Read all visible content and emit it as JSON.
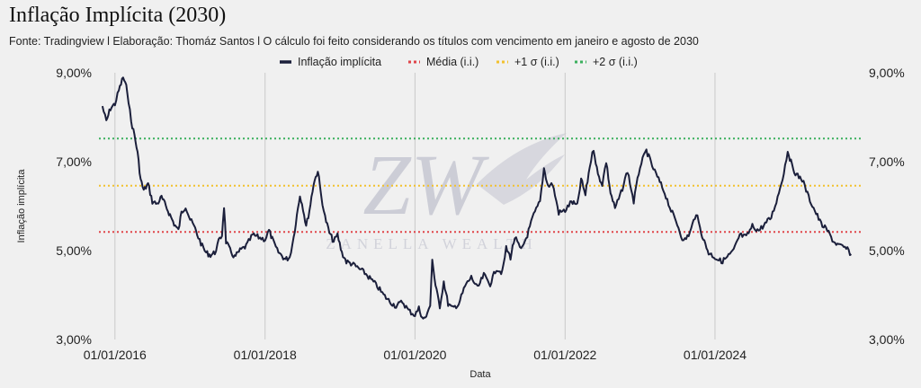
{
  "title": "Inflação Implícita (2030)",
  "subtitle": "Fonte: Tradingview l Elaboração: Thomáz Santos l O cálculo foi feito considerando os títulos com vencimento em janeiro e agosto de 2030",
  "watermark": {
    "mark": "ZW",
    "text": "ZANELLA WEALTH"
  },
  "chart_data": {
    "type": "line",
    "title": "",
    "xlabel": "Data",
    "ylabel": "Inflação implícita",
    "ylim": [
      3,
      9
    ],
    "yticks": [
      "3,00%",
      "5,00%",
      "7,00%",
      "9,00%"
    ],
    "xticks": [
      "01/01/2016",
      "01/01/2018",
      "01/01/2020",
      "01/01/2022",
      "01/01/2024"
    ],
    "grid": "vertical",
    "legend_position": "top",
    "legend": [
      {
        "label": "Inflação implícita",
        "color": "#1b1f3b",
        "style": "solid"
      },
      {
        "label": "Média (i.i.)",
        "color": "#e0454a",
        "style": "dotted"
      },
      {
        "label": "+1 σ (i.i.)",
        "color": "#f2c12e",
        "style": "dotted"
      },
      {
        "label": "+2 σ (i.i.)",
        "color": "#3bb05e",
        "style": "dotted"
      }
    ],
    "reference_lines": [
      {
        "name": "Média (i.i.)",
        "value": 5.42,
        "color": "#e0454a"
      },
      {
        "name": "+1 σ (i.i.)",
        "value": 6.46,
        "color": "#f2c12e"
      },
      {
        "name": "+2 σ (i.i.)",
        "value": 7.52,
        "color": "#3bb05e"
      }
    ],
    "series": [
      {
        "name": "Inflação implícita",
        "color": "#1b1f3b",
        "points": [
          [
            "2015-11-01",
            8.25
          ],
          [
            "2015-11-20",
            7.9
          ],
          [
            "2015-12-10",
            8.2
          ],
          [
            "2016-01-01",
            8.3
          ],
          [
            "2016-01-20",
            8.6
          ],
          [
            "2016-02-10",
            8.9
          ],
          [
            "2016-03-01",
            8.6
          ],
          [
            "2016-03-20",
            7.9
          ],
          [
            "2016-04-05",
            7.6
          ],
          [
            "2016-04-20",
            7.2
          ],
          [
            "2016-05-05",
            6.6
          ],
          [
            "2016-05-20",
            6.35
          ],
          [
            "2016-06-10",
            6.5
          ],
          [
            "2016-07-01",
            6.1
          ],
          [
            "2016-07-25",
            6.05
          ],
          [
            "2016-08-15",
            6.2
          ],
          [
            "2016-09-05",
            6.0
          ],
          [
            "2016-09-25",
            5.8
          ],
          [
            "2016-10-15",
            5.6
          ],
          [
            "2016-11-05",
            5.45
          ],
          [
            "2016-11-20",
            5.85
          ],
          [
            "2016-12-10",
            6.0
          ],
          [
            "2017-01-01",
            5.7
          ],
          [
            "2017-01-20",
            5.55
          ],
          [
            "2017-02-10",
            5.3
          ],
          [
            "2017-03-01",
            5.1
          ],
          [
            "2017-03-20",
            4.95
          ],
          [
            "2017-04-10",
            4.9
          ],
          [
            "2017-05-01",
            4.95
          ],
          [
            "2017-05-20",
            5.2
          ],
          [
            "2017-06-05",
            5.35
          ],
          [
            "2017-06-15",
            6.0
          ],
          [
            "2017-06-25",
            5.2
          ],
          [
            "2017-07-15",
            5.0
          ],
          [
            "2017-08-05",
            4.85
          ],
          [
            "2017-09-01",
            5.0
          ],
          [
            "2017-10-01",
            5.1
          ],
          [
            "2017-11-01",
            5.35
          ],
          [
            "2017-12-01",
            5.3
          ],
          [
            "2018-01-01",
            5.25
          ],
          [
            "2018-01-20",
            5.45
          ],
          [
            "2018-02-10",
            5.2
          ],
          [
            "2018-03-01",
            5.0
          ],
          [
            "2018-03-20",
            4.9
          ],
          [
            "2018-04-10",
            4.8
          ],
          [
            "2018-05-01",
            4.85
          ],
          [
            "2018-05-20",
            5.3
          ],
          [
            "2018-06-05",
            5.8
          ],
          [
            "2018-06-20",
            6.25
          ],
          [
            "2018-07-05",
            5.95
          ],
          [
            "2018-07-20",
            5.55
          ],
          [
            "2018-08-05",
            5.9
          ],
          [
            "2018-08-25",
            6.5
          ],
          [
            "2018-09-15",
            6.8
          ],
          [
            "2018-10-01",
            6.25
          ],
          [
            "2018-10-20",
            5.75
          ],
          [
            "2018-11-10",
            5.4
          ],
          [
            "2018-12-01",
            5.2
          ],
          [
            "2018-12-20",
            5.35
          ],
          [
            "2019-01-10",
            4.95
          ],
          [
            "2019-02-01",
            4.75
          ],
          [
            "2019-03-01",
            4.7
          ],
          [
            "2019-04-01",
            4.6
          ],
          [
            "2019-05-01",
            4.5
          ],
          [
            "2019-06-01",
            4.35
          ],
          [
            "2019-07-01",
            4.2
          ],
          [
            "2019-08-01",
            4.0
          ],
          [
            "2019-09-01",
            3.85
          ],
          [
            "2019-10-01",
            3.75
          ],
          [
            "2019-11-01",
            3.85
          ],
          [
            "2019-12-01",
            3.65
          ],
          [
            "2020-01-01",
            3.55
          ],
          [
            "2020-01-20",
            3.7
          ],
          [
            "2020-02-10",
            3.45
          ],
          [
            "2020-03-01",
            3.55
          ],
          [
            "2020-03-15",
            3.8
          ],
          [
            "2020-03-25",
            4.8
          ],
          [
            "2020-04-10",
            4.2
          ],
          [
            "2020-05-01",
            3.75
          ],
          [
            "2020-05-20",
            4.3
          ],
          [
            "2020-06-10",
            3.8
          ],
          [
            "2020-07-01",
            3.7
          ],
          [
            "2020-08-01",
            3.8
          ],
          [
            "2020-09-01",
            4.2
          ],
          [
            "2020-10-01",
            4.4
          ],
          [
            "2020-11-01",
            4.15
          ],
          [
            "2020-12-01",
            4.45
          ],
          [
            "2021-01-01",
            4.25
          ],
          [
            "2021-02-01",
            4.6
          ],
          [
            "2021-03-01",
            4.5
          ],
          [
            "2021-03-20",
            5.05
          ],
          [
            "2021-04-10",
            4.85
          ],
          [
            "2021-05-01",
            5.3
          ],
          [
            "2021-06-01",
            5.0
          ],
          [
            "2021-07-01",
            5.35
          ],
          [
            "2021-08-01",
            5.8
          ],
          [
            "2021-09-01",
            6.1
          ],
          [
            "2021-09-20",
            6.85
          ],
          [
            "2021-10-10",
            6.45
          ],
          [
            "2021-11-01",
            6.5
          ],
          [
            "2021-12-01",
            5.85
          ],
          [
            "2022-01-01",
            5.9
          ],
          [
            "2022-02-01",
            6.1
          ],
          [
            "2022-03-01",
            6.0
          ],
          [
            "2022-03-20",
            6.6
          ],
          [
            "2022-04-10",
            6.25
          ],
          [
            "2022-05-01",
            6.9
          ],
          [
            "2022-05-20",
            7.3
          ],
          [
            "2022-06-10",
            6.7
          ],
          [
            "2022-07-01",
            6.5
          ],
          [
            "2022-07-20",
            7.0
          ],
          [
            "2022-08-10",
            6.3
          ],
          [
            "2022-09-01",
            5.95
          ],
          [
            "2022-10-01",
            6.3
          ],
          [
            "2022-11-01",
            6.8
          ],
          [
            "2022-12-01",
            6.1
          ],
          [
            "2023-01-01",
            6.9
          ],
          [
            "2023-02-01",
            7.25
          ],
          [
            "2023-03-01",
            6.9
          ],
          [
            "2023-04-01",
            6.6
          ],
          [
            "2023-05-01",
            6.3
          ],
          [
            "2023-06-01",
            5.9
          ],
          [
            "2023-07-01",
            5.6
          ],
          [
            "2023-08-01",
            5.2
          ],
          [
            "2023-09-01",
            5.4
          ],
          [
            "2023-10-01",
            5.85
          ],
          [
            "2023-10-20",
            5.5
          ],
          [
            "2023-11-10",
            5.2
          ],
          [
            "2023-12-01",
            4.95
          ],
          [
            "2024-01-01",
            4.85
          ],
          [
            "2024-02-01",
            4.75
          ],
          [
            "2024-03-01",
            4.85
          ],
          [
            "2024-04-01",
            5.0
          ],
          [
            "2024-05-01",
            5.35
          ],
          [
            "2024-06-01",
            5.3
          ],
          [
            "2024-07-01",
            5.55
          ],
          [
            "2024-08-01",
            5.45
          ],
          [
            "2024-09-01",
            5.6
          ],
          [
            "2024-10-01",
            5.75
          ],
          [
            "2024-11-01",
            6.2
          ],
          [
            "2024-12-01",
            6.75
          ],
          [
            "2024-12-20",
            7.25
          ],
          [
            "2025-01-10",
            6.9
          ],
          [
            "2025-02-01",
            6.7
          ],
          [
            "2025-03-01",
            6.6
          ],
          [
            "2025-04-01",
            6.2
          ],
          [
            "2025-05-01",
            5.9
          ],
          [
            "2025-06-01",
            5.6
          ],
          [
            "2025-07-01",
            5.45
          ],
          [
            "2025-08-01",
            5.2
          ],
          [
            "2025-09-01",
            5.1
          ],
          [
            "2025-10-01",
            5.05
          ],
          [
            "2025-10-25",
            4.92
          ]
        ]
      }
    ]
  }
}
